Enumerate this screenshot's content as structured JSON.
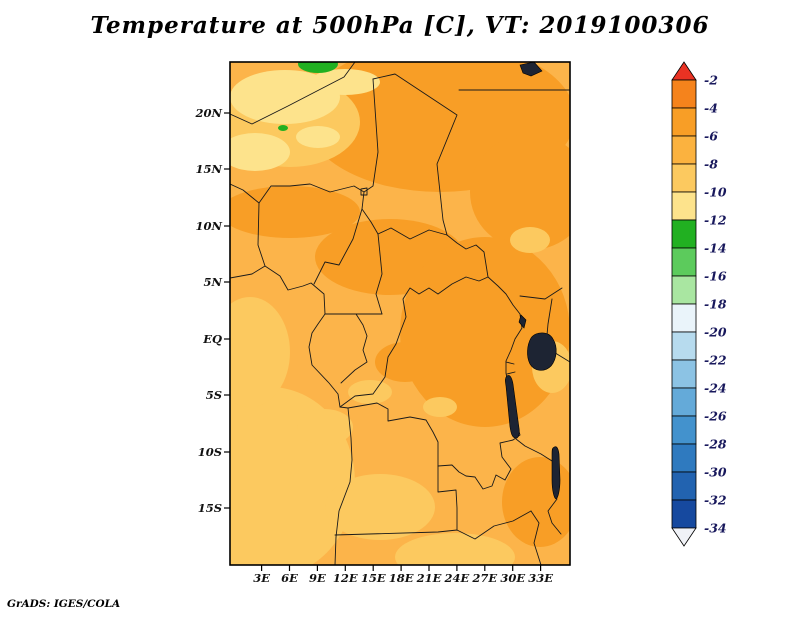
{
  "title": "Temperature at 500hPa [C], VT: 2019100306",
  "footer": "GrADS: IGES/COLA",
  "axes": {
    "lat_ticks": [
      "20N",
      "15N",
      "10N",
      "5N",
      "EQ",
      "5S",
      "10S",
      "15S"
    ],
    "lon_ticks": [
      "3E",
      "6E",
      "9E",
      "12E",
      "15E",
      "18E",
      "21E",
      "24E",
      "27E",
      "30E",
      "33E"
    ]
  },
  "legend": {
    "levels": [
      "-2",
      "-4",
      "-6",
      "-8",
      "-10",
      "-12",
      "-14",
      "-16",
      "-18",
      "-20",
      "-22",
      "-24",
      "-26",
      "-28",
      "-30",
      "-32",
      "-34"
    ],
    "band_colors": [
      "#f5831c",
      "#f89e26",
      "#fbb23f",
      "#fcc95f",
      "#fde38c",
      "#21b021",
      "#5ccb5c",
      "#a9e6a1",
      "#eaf4fa",
      "#b7dbee",
      "#8cc3e4",
      "#64aad9",
      "#4392cd",
      "#2f7abf",
      "#2263b0",
      "#16499f"
    ],
    "arrow_top_color": "#e93223",
    "arrow_bottom_color": "#f0f2f7",
    "label_color": "#18185c"
  },
  "map": {
    "palette": {
      "base": "#fcb44a",
      "dark": "#f89e26",
      "light": "#fcc95f",
      "pale": "#fde38c",
      "green": "#21b021",
      "lake": "#1d2433",
      "border": "#1a1a1a"
    }
  },
  "chart_data": {
    "type": "heatmap",
    "title": "Temperature at 500hPa [C], VT: 2019100306",
    "variable": "Temperature",
    "level": "500hPa",
    "units": "C",
    "valid_time": "2019100306",
    "source_label": "GrADS: IGES/COLA",
    "x_ticks": [
      "3E",
      "6E",
      "9E",
      "12E",
      "15E",
      "18E",
      "21E",
      "24E",
      "27E",
      "30E",
      "33E"
    ],
    "y_ticks": [
      "20N",
      "15N",
      "10N",
      "5N",
      "EQ",
      "5S",
      "10S",
      "15S"
    ],
    "lon_range": [
      0,
      36
    ],
    "lat_range": [
      -20.5,
      24.5
    ],
    "contour_interval": 2,
    "legend_levels": [
      -2,
      -4,
      -6,
      -8,
      -10,
      -12,
      -14,
      -16,
      -18,
      -20,
      -22,
      -24,
      -26,
      -28,
      -30,
      -32,
      -34
    ],
    "legend_position": "right",
    "region": "Central Africa (Gulf of Guinea to East African lakes)",
    "field_summary": [
      {
        "band": "-4 to -6 C",
        "where": "northern Sahara/Sahel band and eastern Congo basin highlands"
      },
      {
        "band": "-6 to -8 C",
        "where": "dominant shade over most of the domain"
      },
      {
        "band": "-8 to -10 C",
        "where": "Atlantic coast, Angola and south-western patches"
      },
      {
        "band": "-10 to -12 C",
        "where": "pale patches in the north-west corner"
      },
      {
        "band": "-12 to -14 C",
        "where": "small green spot at the northern edge near 9E"
      }
    ]
  }
}
